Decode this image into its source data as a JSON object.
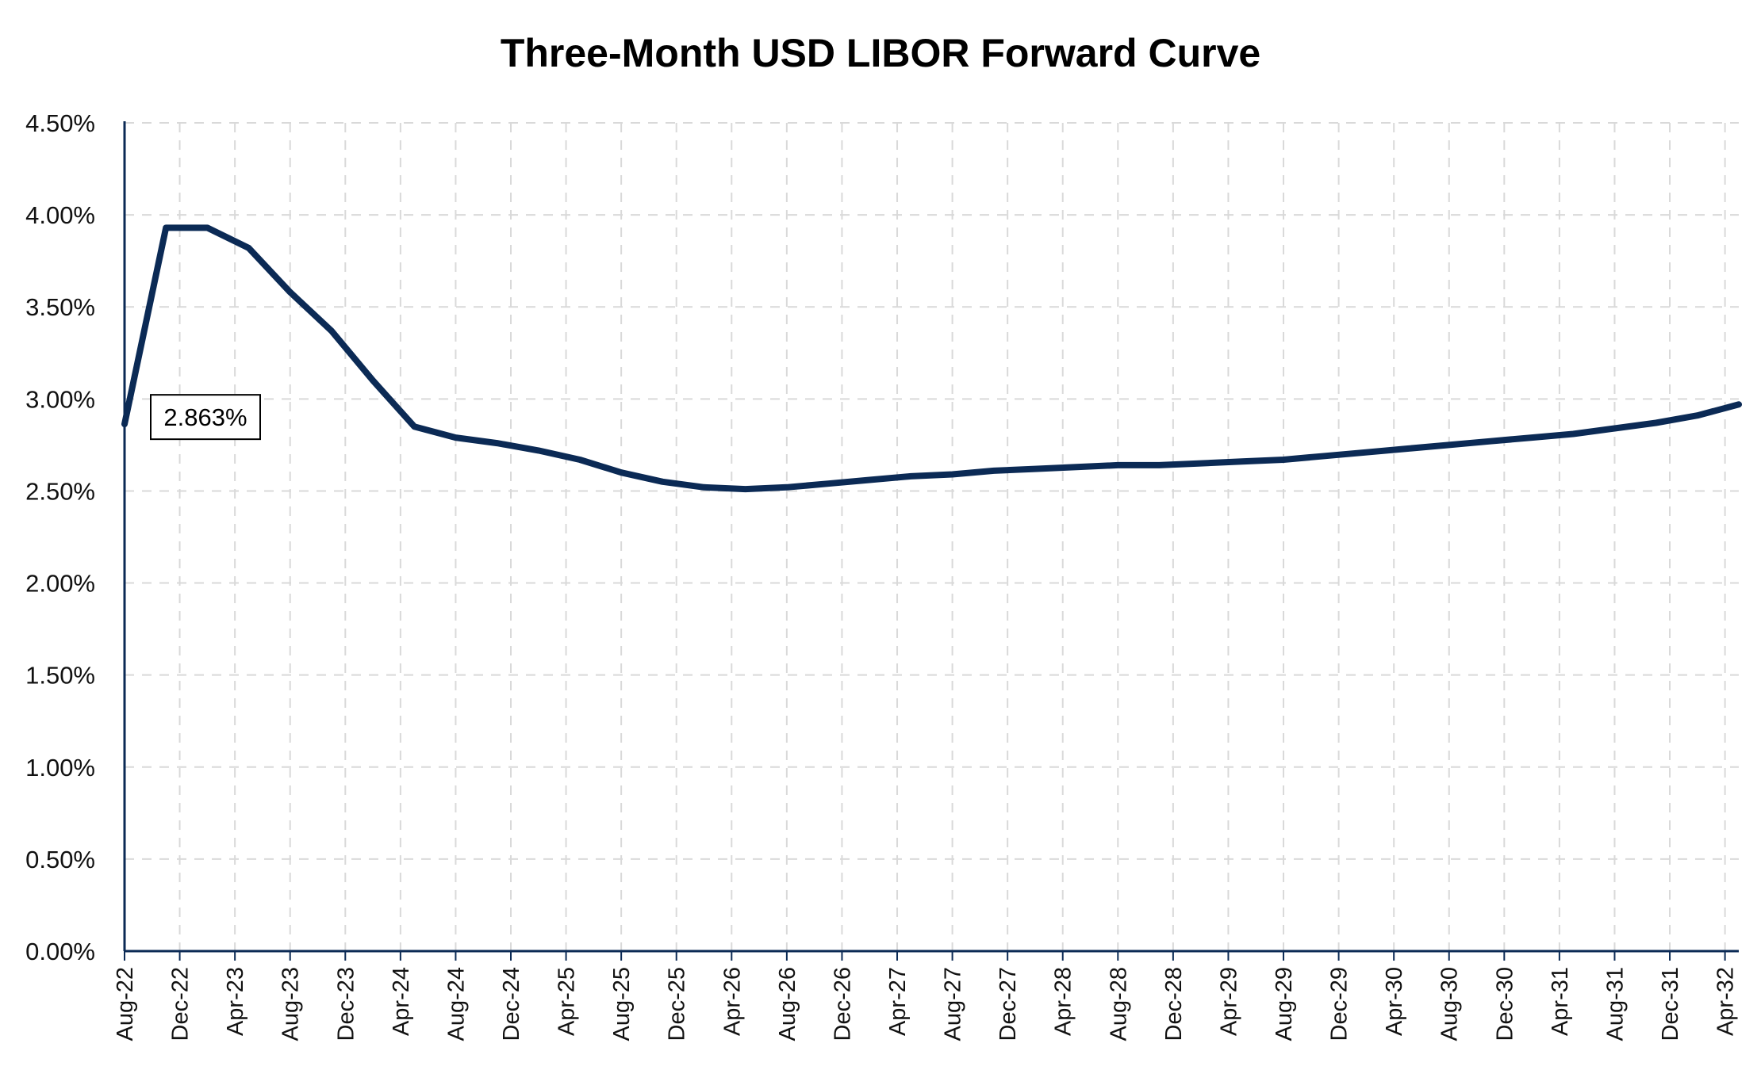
{
  "chart_data": {
    "type": "line",
    "title": "Three-Month USD LIBOR Forward Curve",
    "xlabel": "",
    "ylabel": "",
    "ylim": [
      0,
      0.045
    ],
    "grid": true,
    "line_color": "#0b2a55",
    "y_ticks": [
      "0.00%",
      "0.50%",
      "1.00%",
      "1.50%",
      "2.00%",
      "2.50%",
      "3.00%",
      "3.50%",
      "4.00%",
      "4.50%"
    ],
    "x_ticks": [
      "Aug-22",
      "Dec-22",
      "Apr-23",
      "Aug-23",
      "Dec-23",
      "Apr-24",
      "Aug-24",
      "Dec-24",
      "Apr-25",
      "Aug-25",
      "Dec-25",
      "Apr-26",
      "Aug-26",
      "Dec-26",
      "Apr-27",
      "Aug-27",
      "Dec-27",
      "Apr-28",
      "Aug-28",
      "Dec-28",
      "Apr-29",
      "Aug-29",
      "Dec-29",
      "Apr-30",
      "Aug-30",
      "Dec-30",
      "Apr-31",
      "Aug-31",
      "Dec-31",
      "Apr-32"
    ],
    "series": [
      {
        "x": [
          "Aug-22",
          "Nov-22",
          "Feb-23",
          "May-23",
          "Aug-23",
          "Nov-23",
          "Feb-24",
          "May-24",
          "Aug-24",
          "Nov-24",
          "Feb-25",
          "May-25",
          "Aug-25",
          "Nov-25",
          "Feb-26",
          "May-26",
          "Aug-26",
          "Nov-26",
          "Feb-27",
          "May-27",
          "Aug-27",
          "Nov-27",
          "Feb-28",
          "May-28",
          "Aug-28",
          "Nov-28",
          "Feb-29",
          "May-29",
          "Aug-29",
          "Nov-29",
          "Feb-30",
          "May-30",
          "Aug-30",
          "Nov-30",
          "Feb-31",
          "May-31",
          "Aug-31",
          "Nov-31",
          "Feb-32",
          "May-32"
        ],
        "values": [
          0.02863,
          0.0393,
          0.0393,
          0.0382,
          0.0358,
          0.0337,
          0.031,
          0.0285,
          0.0279,
          0.0276,
          0.0272,
          0.0267,
          0.026,
          0.0255,
          0.0252,
          0.0251,
          0.0252,
          0.0254,
          0.0256,
          0.0258,
          0.0259,
          0.0261,
          0.0262,
          0.0263,
          0.0264,
          0.0264,
          0.0265,
          0.0266,
          0.0267,
          0.0269,
          0.0271,
          0.0273,
          0.0275,
          0.0277,
          0.0279,
          0.0281,
          0.0284,
          0.0287,
          0.0291,
          0.0297
        ]
      }
    ],
    "annotation": {
      "text": "2.863%",
      "point_index": 0
    }
  }
}
